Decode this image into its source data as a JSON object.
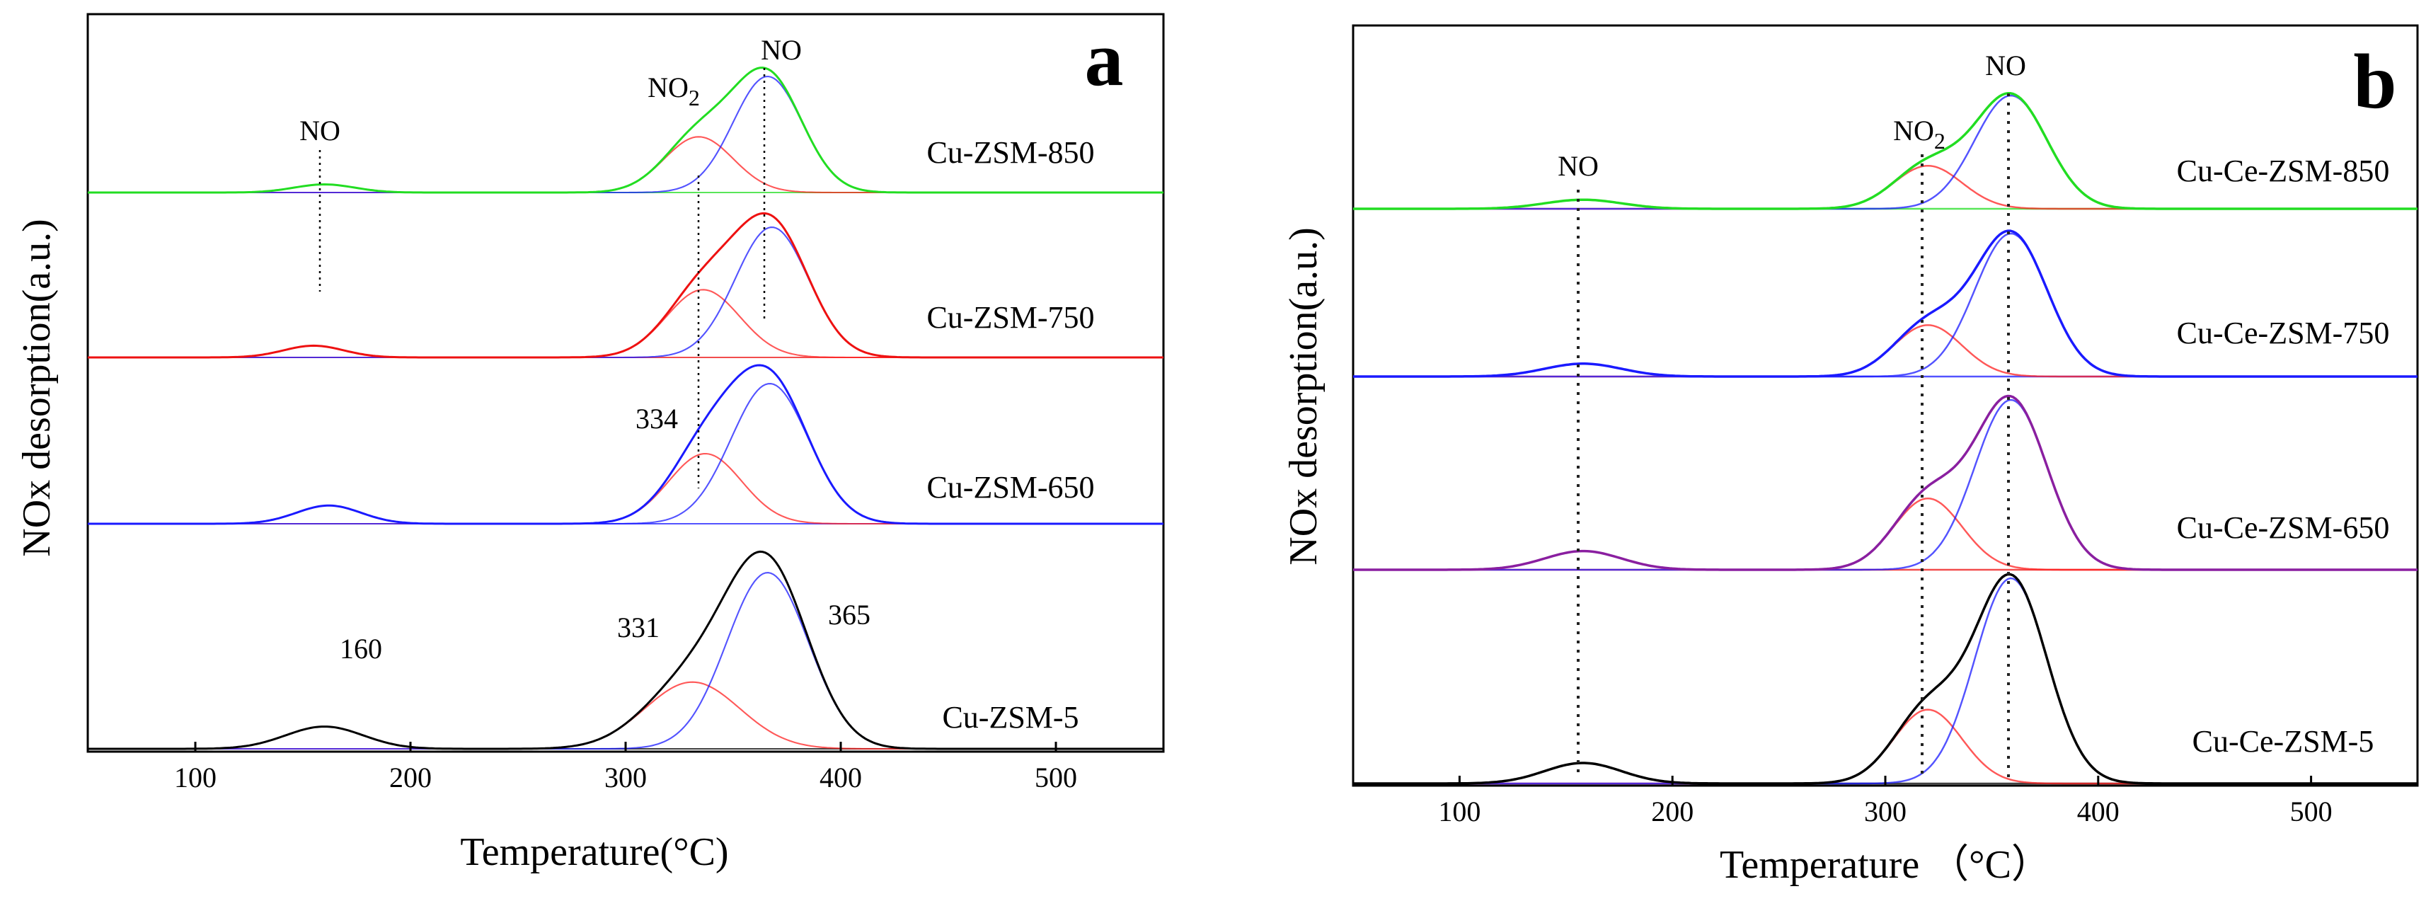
{
  "chart_data": [
    {
      "panel_label": "a",
      "type": "line",
      "xlabel": "Temperature(°C)",
      "ylabel": "NOx desorption(a.u.)",
      "xlim": [
        50,
        550
      ],
      "xticks": [
        100,
        200,
        300,
        400,
        500
      ],
      "xtick_labels": [
        "100",
        "200",
        "300",
        "400",
        "500"
      ],
      "samples": [
        {
          "name": "Cu-ZSM-850",
          "total_color": "#22dd22",
          "peaks": [
            {
              "label": "NO",
              "center": 160,
              "width": 14,
              "height": 0.07,
              "color": "#22dd22"
            },
            {
              "label": "NO2",
              "center": 334,
              "width": 16,
              "height": 0.48,
              "color": "#ff2020"
            },
            {
              "label": "NO",
              "center": 366,
              "width": 16,
              "height": 1.0,
              "color": "#1a1aff"
            }
          ]
        },
        {
          "name": "Cu-ZSM-750",
          "total_color": "#ee1111",
          "peaks": [
            {
              "label": "NO",
              "center": 155,
              "width": 14,
              "height": 0.09,
              "color": "#ee1111"
            },
            {
              "label": "NO2",
              "center": 336,
              "width": 17,
              "height": 0.52,
              "color": "#ff2020"
            },
            {
              "label": "NO",
              "center": 368,
              "width": 17,
              "height": 1.0,
              "color": "#1a1aff"
            }
          ]
        },
        {
          "name": "Cu-ZSM-650",
          "total_color": "#1a1aff",
          "peaks": [
            {
              "label": "NO",
              "center": 162,
              "width": 15,
              "height": 0.13,
              "color": "#1a1aff"
            },
            {
              "label": "NO2",
              "center": 337,
              "width": 17,
              "height": 0.5,
              "color": "#ff2020"
            },
            {
              "label": "NO",
              "center": 367,
              "width": 18,
              "height": 1.0,
              "color": "#1a1aff"
            }
          ]
        },
        {
          "name": "Cu-ZSM-5",
          "total_color": "#000000",
          "peaks": [
            {
              "label": "NO",
              "center": 160,
              "width": 18,
              "height": 0.12,
              "color": "#000000"
            },
            {
              "label": "NO2",
              "center": 331,
              "width": 22,
              "height": 0.36,
              "color": "#ff2020"
            },
            {
              "label": "NO",
              "center": 366,
              "width": 19,
              "height": 0.95,
              "color": "#1a1aff"
            }
          ]
        }
      ],
      "annotations": [
        {
          "text": "NO",
          "x": 160
        },
        {
          "text": "NO2",
          "x": 334
        },
        {
          "text": "NO",
          "x": 365
        },
        {
          "text": "334",
          "x": 334
        },
        {
          "text": "160",
          "x": 160
        },
        {
          "text": "331",
          "x": 331
        },
        {
          "text": "365",
          "x": 365
        }
      ],
      "reference_lines_x": [
        160,
        334,
        365
      ]
    },
    {
      "panel_label": "b",
      "type": "line",
      "xlabel": "Temperature （°C）",
      "ylabel": "NOx desorption(a.u.)",
      "xlim": [
        50,
        550
      ],
      "xticks": [
        100,
        200,
        300,
        400,
        500
      ],
      "xtick_labels": [
        "100",
        "200",
        "300",
        "400",
        "500"
      ],
      "samples": [
        {
          "name": "Cu-Ce-ZSM-850",
          "total_color": "#22dd22",
          "peaks": [
            {
              "label": "NO",
              "center": 158,
              "width": 18,
              "height": 0.08,
              "color": "#22dd22"
            },
            {
              "label": "NO2",
              "center": 320,
              "width": 16,
              "height": 0.38,
              "color": "#ff2020"
            },
            {
              "label": "NO",
              "center": 359,
              "width": 17,
              "height": 1.0,
              "color": "#1a1aff"
            }
          ]
        },
        {
          "name": "Cu-Ce-ZSM-750",
          "total_color": "#1a1aff",
          "peaks": [
            {
              "label": "NO",
              "center": 158,
              "width": 18,
              "height": 0.09,
              "color": "#1a1aff"
            },
            {
              "label": "NO2",
              "center": 320,
              "width": 16,
              "height": 0.36,
              "color": "#ff2020"
            },
            {
              "label": "NO",
              "center": 359,
              "width": 17,
              "height": 1.0,
              "color": "#1a1aff"
            }
          ]
        },
        {
          "name": "Cu-Ce-ZSM-650",
          "total_color": "#8a1fa0",
          "peaks": [
            {
              "label": "NO",
              "center": 158,
              "width": 18,
              "height": 0.11,
              "color": "#ee1111"
            },
            {
              "label": "NO2",
              "center": 320,
              "width": 16,
              "height": 0.42,
              "color": "#ff2020"
            },
            {
              "label": "NO",
              "center": 359,
              "width": 17,
              "height": 1.0,
              "color": "#1a1aff"
            }
          ]
        },
        {
          "name": "Cu-Ce-ZSM-5",
          "total_color": "#000000",
          "peaks": [
            {
              "label": "NO",
              "center": 158,
              "width": 18,
              "height": 0.1,
              "color": "#000000"
            },
            {
              "label": "NO2",
              "center": 320,
              "width": 16,
              "height": 0.36,
              "color": "#ff2020"
            },
            {
              "label": "NO",
              "center": 359,
              "width": 17,
              "height": 1.0,
              "color": "#1a1aff"
            }
          ]
        }
      ],
      "annotations": [
        {
          "text": "NO",
          "x": 158
        },
        {
          "text": "NO2",
          "x": 320
        },
        {
          "text": "NO",
          "x": 359
        }
      ],
      "reference_lines_x": [
        158,
        320,
        359
      ]
    }
  ]
}
